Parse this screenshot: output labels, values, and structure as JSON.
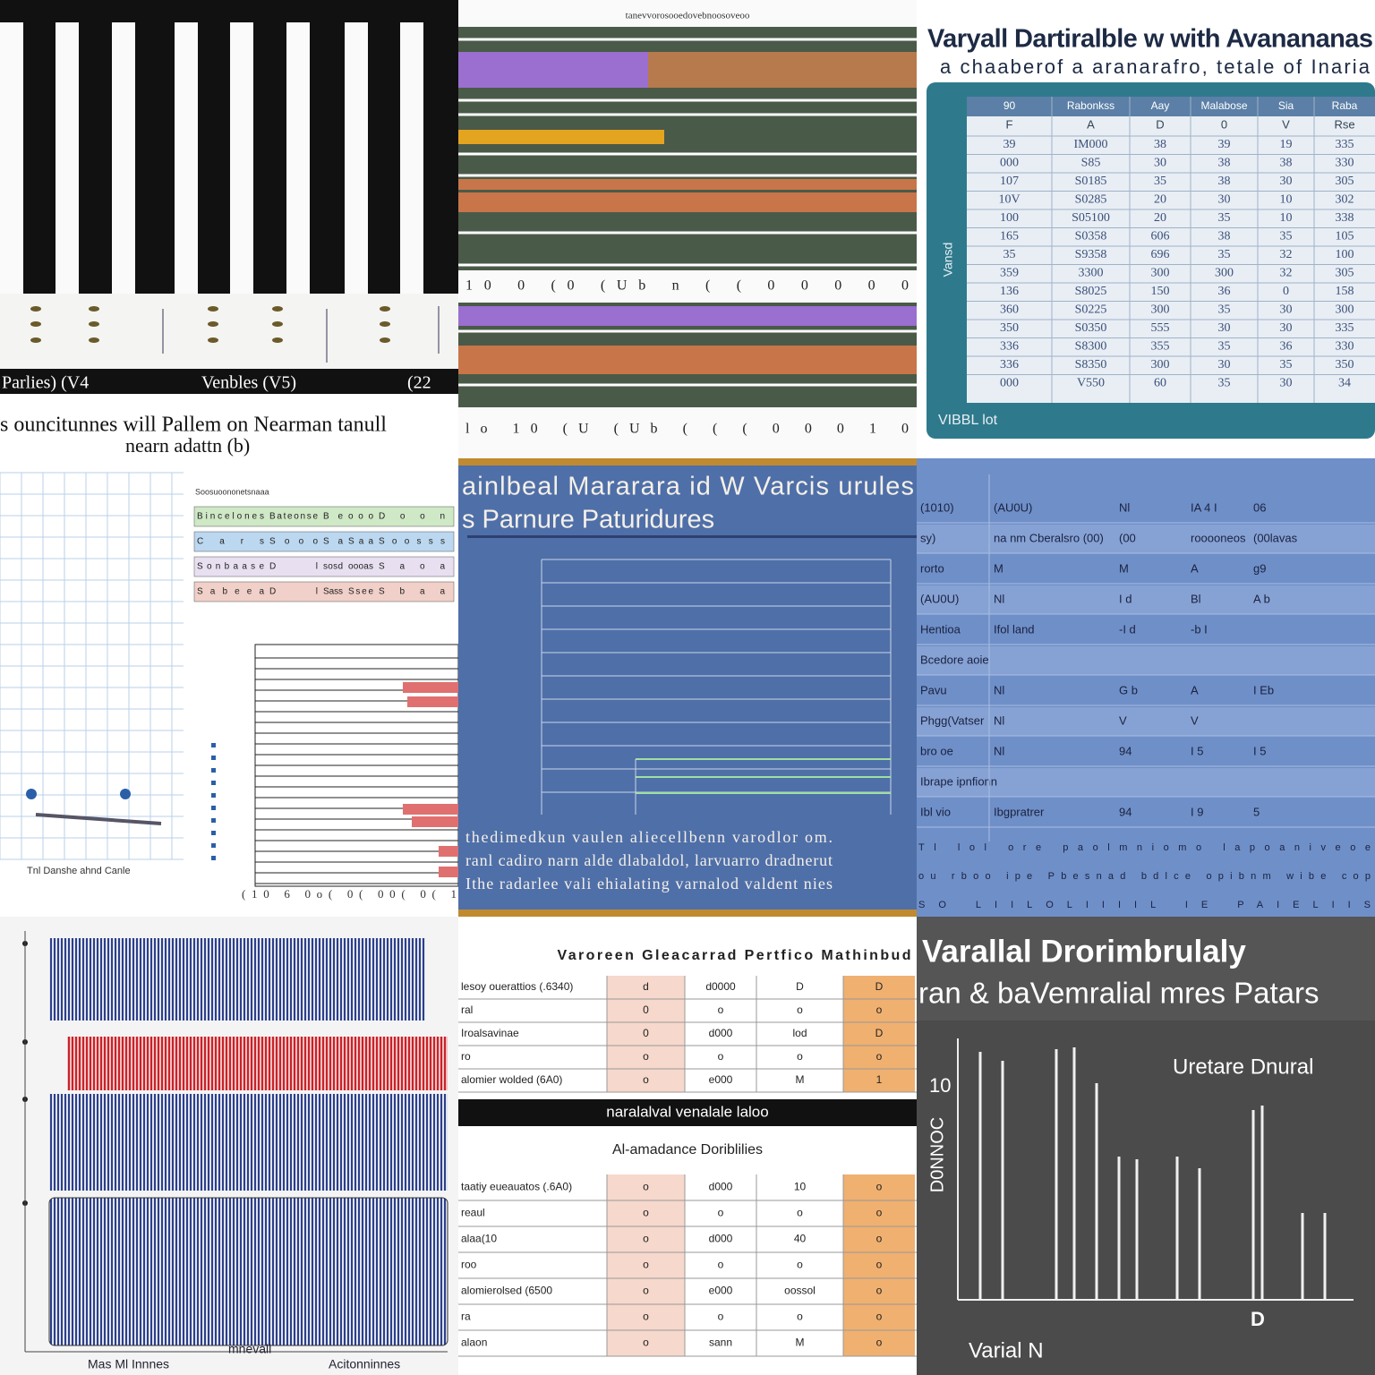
{
  "p1": {
    "labels": [
      "Parlies) (V4",
      "Venbles (V5)",
      "(22"
    ],
    "caption": [
      "s ouncitunnes will Pallem on Nearman tanull",
      "nearn adattn (b)"
    ]
  },
  "p2": {
    "title": "tanevvorosooedovebnoosoveoo",
    "axis_rows": [
      "10 0 (0 (Ub n ( ( 0 0 0 0 0",
      "lo 10 (U (Ub ( ( ( 0 0 0 1 0"
    ]
  },
  "p3": {
    "title": "Varyall Dartiralble w with Avanananas",
    "subtitle": "a chaaberof a aranarafro, tetale of Inaria",
    "y_label": "Vansd",
    "footer": "VIBBL lot",
    "table": {
      "header": [
        "90",
        "Rabonkss",
        "Aay",
        "Malabose",
        "Sia",
        "Raba"
      ],
      "subheader": [
        "F",
        "A",
        "D",
        "0",
        "V",
        "Rse"
      ],
      "rows": [
        [
          "39",
          "IM000",
          "38",
          "39",
          "19",
          "335"
        ],
        [
          "000",
          "S85",
          "30",
          "38",
          "38",
          "330"
        ],
        [
          "107",
          "S0185",
          "35",
          "38",
          "30",
          "305"
        ],
        [
          "10V",
          "S0285",
          "20",
          "30",
          "10",
          "302"
        ],
        [
          "100",
          "S05100",
          "20",
          "35",
          "10",
          "338"
        ],
        [
          "165",
          "S0358",
          "606",
          "38",
          "35",
          "105"
        ],
        [
          "35",
          "S9358",
          "696",
          "35",
          "32",
          "100"
        ],
        [
          "359",
          "3300",
          "300",
          "300",
          "32",
          "305"
        ],
        [
          "136",
          "S8025",
          "150",
          "36",
          "0",
          "158"
        ],
        [
          "360",
          "S0225",
          "300",
          "35",
          "30",
          "300"
        ],
        [
          "350",
          "S0350",
          "555",
          "30",
          "30",
          "335"
        ],
        [
          "336",
          "S8300",
          "355",
          "35",
          "36",
          "330"
        ],
        [
          "336",
          "S8350",
          "300",
          "30",
          "35",
          "350"
        ],
        [
          "000",
          "V550",
          "60",
          "35",
          "30",
          "34"
        ]
      ]
    }
  },
  "p4": {
    "table_title": "Soosuoononetsnaaa",
    "table_rows": [
      [
        "Bincelones",
        "Bateonse",
        "Be",
        "ooo",
        "Doon"
      ],
      [
        "Cars",
        "Sooo",
        "Sa",
        "Saa",
        "Soosss"
      ],
      [
        "Sonbaase",
        "Dl",
        "sosd",
        "oooas",
        "Saoa"
      ],
      [
        "Sabeea",
        "Dl",
        "Sass",
        "Ssee",
        "Sbaa"
      ]
    ],
    "footer": "Tnl Danshe ahnd Canle",
    "axis": "(10 6 0o( 0( 00( 0( 1"
  },
  "p5": {
    "title": "ainlbeal Mararara id W Varcis urules",
    "subtitle": "s Parnure Paturidures",
    "notes": [
      "thedimedkun vaulen aliecellbenn varodlor om.",
      "ranl cadiro narn alde dlabaldol, larvuarro dradnerut",
      "Ithe radarlee vali ehialating varnalod valdent nies"
    ]
  },
  "p6": {
    "rows": [
      [
        "(1010)",
        "(AU0U)",
        "Nl",
        "IA 4 I",
        "06"
      ],
      [
        "sy)",
        "na nm Cberalsro (00)",
        "(00",
        "rooooneos",
        "(00lavas"
      ],
      [
        "rorto",
        "M",
        "M",
        "A",
        "g9"
      ],
      [
        "(AU0U)",
        "Nl",
        "I d",
        "Bl",
        "A b"
      ],
      [
        "Hentioa",
        "Ifol land",
        "-I d",
        "-b I"
      ],
      [
        "Bcedore aoie"
      ],
      [
        "Pavu",
        "Nl",
        "G b",
        "A",
        "I Eb"
      ],
      [
        "Phgg(Vatser",
        "Nl",
        "V",
        "V"
      ],
      [
        "bro oe",
        "Nl",
        "94",
        "I 5",
        "I 5"
      ],
      [
        "Ibrape ipnfionn"
      ],
      [
        "Ibl vio",
        "Ibgpratrer",
        "94",
        "I 9",
        "5"
      ]
    ],
    "footer": [
      "Tl lol ore paolmniomo lapoaniveoe",
      "ou rboo ipe Pbesnad bdlce opibnm wibe cop",
      "SO LIILOLIIIIL IE PAIELIIS"
    ]
  },
  "p7": {
    "labels": [
      "Mas Ml Innnes",
      "mnevall",
      "Acitonninnes"
    ]
  },
  "p8": {
    "title": "Varoreen Gleacarrad Pertfico Mathinbud",
    "band": "naralalval venalale laloo",
    "title2": "Al-amadance Doriblilies",
    "table1": [
      [
        "lesoy ouerattios (.6340)",
        "d",
        "d0000",
        "D",
        "D"
      ],
      [
        "ral",
        "0",
        "o",
        "o",
        "o"
      ],
      [
        "Iroalsavinae",
        "0",
        "d000",
        "lod",
        "D"
      ],
      [
        "ro",
        "o",
        "o",
        "o",
        "o"
      ],
      [
        "alomier wolded (6A0)",
        "o",
        "e000",
        "M",
        "1"
      ]
    ],
    "table2": [
      [
        "taatiy eueauatos (.6A0)",
        "o",
        "d000",
        "10",
        "o"
      ],
      [
        "reaul",
        "o",
        "o",
        "o",
        "o"
      ],
      [
        "alaa(10",
        "o",
        "d000",
        "40",
        "o"
      ],
      [
        "roo",
        "o",
        "o",
        "o",
        "o"
      ],
      [
        "alomierolsed (6500",
        "o",
        "e000",
        "oossol",
        "o"
      ],
      [
        "ra",
        "o",
        "o",
        "o",
        "o"
      ],
      [
        "alaon",
        "o",
        "sann",
        "M",
        "o"
      ]
    ]
  },
  "p9": {
    "title": "Varallal Drorimbrulaly",
    "subtitle": "ran & baVemralial mres Patars",
    "legend": "Uretare Dnural",
    "y_label": "D0NNOC",
    "y_tick": "10",
    "x_mark": "D",
    "x_label": "Varial N"
  }
}
